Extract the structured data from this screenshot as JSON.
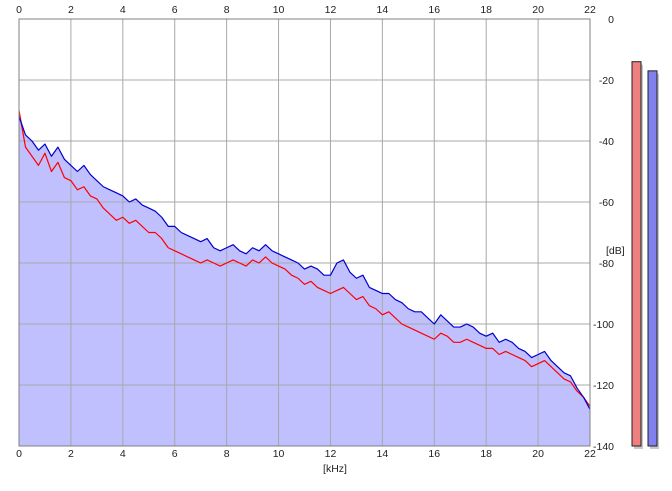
{
  "chart_data": {
    "type": "area",
    "xlabel": "[kHz]",
    "ylabel": "[dB]",
    "xlim": [
      0,
      22
    ],
    "ylim": [
      -140,
      0
    ],
    "x_ticks": [
      0,
      2,
      4,
      6,
      8,
      10,
      12,
      14,
      16,
      18,
      20,
      22
    ],
    "y_ticks": [
      0,
      -20,
      -40,
      -60,
      -80,
      -100,
      -120,
      -140
    ],
    "grid": true,
    "series_colors": [
      "#ff0000",
      "#0000cc"
    ],
    "fill_color": "#c0c0ff",
    "series": [
      {
        "color": "#ff0000",
        "x": [
          0.0,
          0.25,
          0.5,
          0.75,
          1.0,
          1.25,
          1.5,
          1.75,
          2.0,
          2.25,
          2.5,
          2.75,
          3.0,
          3.25,
          3.5,
          3.75,
          4.0,
          4.25,
          4.5,
          4.75,
          5.0,
          5.25,
          5.5,
          5.75,
          6.0,
          6.25,
          6.5,
          6.75,
          7.0,
          7.25,
          7.5,
          7.75,
          8.0,
          8.25,
          8.5,
          8.75,
          9.0,
          9.25,
          9.5,
          9.75,
          10.0,
          10.25,
          10.5,
          10.75,
          11.0,
          11.25,
          11.5,
          11.75,
          12.0,
          12.25,
          12.5,
          12.75,
          13.0,
          13.25,
          13.5,
          13.75,
          14.0,
          14.25,
          14.5,
          14.75,
          15.0,
          15.25,
          15.5,
          15.75,
          16.0,
          16.25,
          16.5,
          16.75,
          17.0,
          17.25,
          17.5,
          17.75,
          18.0,
          18.25,
          18.5,
          18.75,
          19.0,
          19.25,
          19.5,
          19.75,
          20.0,
          20.25,
          20.5,
          20.75,
          21.0,
          21.25,
          21.5,
          21.75,
          22.0
        ],
        "y": [
          -30,
          -42,
          -45,
          -48,
          -44,
          -50,
          -47,
          -52,
          -53,
          -56,
          -55,
          -58,
          -59,
          -62,
          -64,
          -66,
          -65,
          -67,
          -66,
          -68,
          -70,
          -70,
          -72,
          -75,
          -76,
          -77,
          -78,
          -79,
          -80,
          -79,
          -80,
          -81,
          -80,
          -79,
          -80,
          -81,
          -79,
          -80,
          -78,
          -80,
          -81,
          -82,
          -84,
          -85,
          -87,
          -86,
          -88,
          -89,
          -90,
          -89,
          -88,
          -90,
          -92,
          -91,
          -94,
          -95,
          -97,
          -96,
          -98,
          -100,
          -101,
          -102,
          -103,
          -104,
          -105,
          -103,
          -104,
          -106,
          -106,
          -105,
          -106,
          -107,
          -108,
          -108,
          -110,
          -109,
          -110,
          -111,
          -112,
          -114,
          -113,
          -112,
          -114,
          -116,
          -118,
          -119,
          -122,
          -124,
          -127
        ]
      },
      {
        "color": "#0000cc",
        "x": [
          0.0,
          0.25,
          0.5,
          0.75,
          1.0,
          1.25,
          1.5,
          1.75,
          2.0,
          2.25,
          2.5,
          2.75,
          3.0,
          3.25,
          3.5,
          3.75,
          4.0,
          4.25,
          4.5,
          4.75,
          5.0,
          5.25,
          5.5,
          5.75,
          6.0,
          6.25,
          6.5,
          6.75,
          7.0,
          7.25,
          7.5,
          7.75,
          8.0,
          8.25,
          8.5,
          8.75,
          9.0,
          9.25,
          9.5,
          9.75,
          10.0,
          10.25,
          10.5,
          10.75,
          11.0,
          11.25,
          11.5,
          11.75,
          12.0,
          12.25,
          12.5,
          12.75,
          13.0,
          13.25,
          13.5,
          13.75,
          14.0,
          14.25,
          14.5,
          14.75,
          15.0,
          15.25,
          15.5,
          15.75,
          16.0,
          16.25,
          16.5,
          16.75,
          17.0,
          17.25,
          17.5,
          17.75,
          18.0,
          18.25,
          18.5,
          18.75,
          19.0,
          19.25,
          19.5,
          19.75,
          20.0,
          20.25,
          20.5,
          20.75,
          21.0,
          21.25,
          21.5,
          21.75,
          22.0
        ],
        "y": [
          -32,
          -38,
          -40,
          -43,
          -41,
          -45,
          -42,
          -46,
          -48,
          -50,
          -48,
          -51,
          -53,
          -55,
          -56,
          -57,
          -58,
          -60,
          -59,
          -61,
          -62,
          -63,
          -65,
          -68,
          -68,
          -70,
          -71,
          -72,
          -73,
          -72,
          -75,
          -76,
          -75,
          -74,
          -76,
          -77,
          -75,
          -76,
          -74,
          -76,
          -77,
          -78,
          -79,
          -80,
          -82,
          -81,
          -82,
          -84,
          -84,
          -80,
          -79,
          -83,
          -85,
          -84,
          -88,
          -89,
          -90,
          -90,
          -92,
          -93,
          -95,
          -96,
          -96,
          -98,
          -100,
          -97,
          -99,
          -101,
          -101,
          -100,
          -101,
          -103,
          -104,
          -103,
          -106,
          -105,
          -106,
          -108,
          -109,
          -111,
          -110,
          -109,
          -112,
          -114,
          -116,
          -117,
          -121,
          -124,
          -128
        ]
      }
    ],
    "level_meters": [
      {
        "color": "#f08080",
        "level_db": -14
      },
      {
        "color": "#8080f0",
        "level_db": -17
      }
    ]
  }
}
